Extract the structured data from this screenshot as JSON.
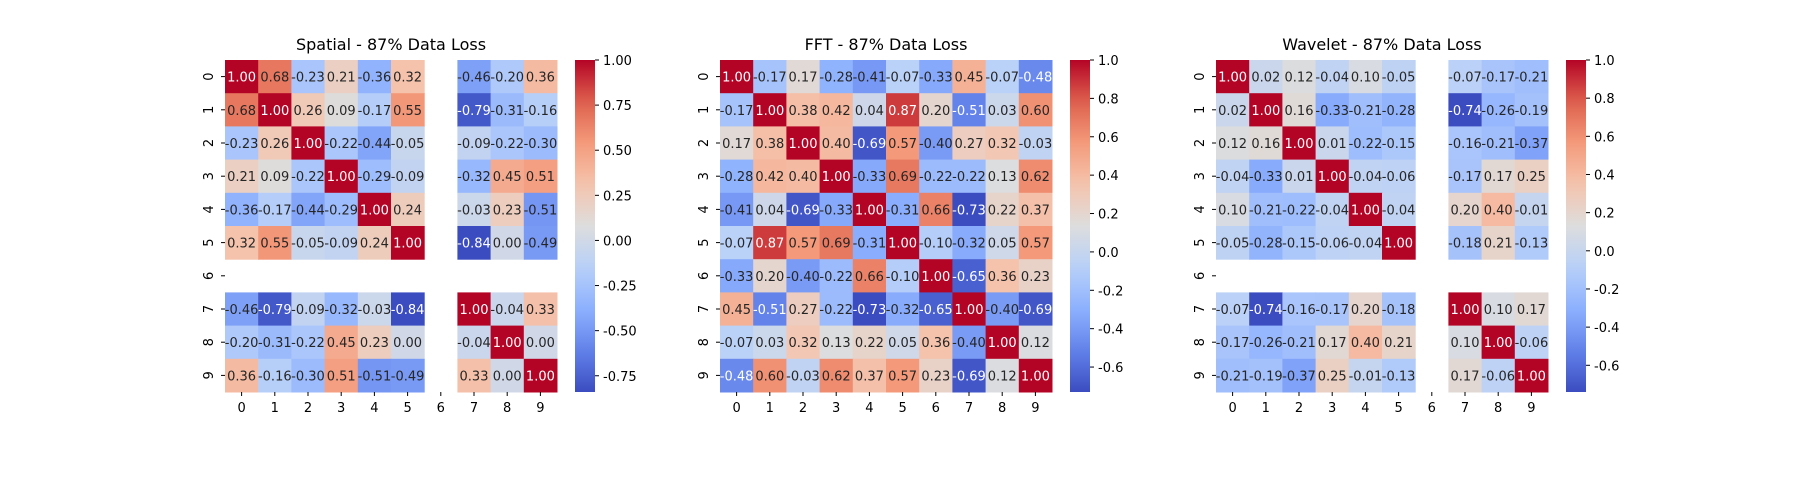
{
  "chart_data": [
    {
      "type": "heatmap",
      "title": "Spatial - 87% Data Loss",
      "x_labels": [
        "0",
        "1",
        "2",
        "3",
        "4",
        "5",
        "6",
        "7",
        "8",
        "9"
      ],
      "y_labels": [
        "0",
        "1",
        "2",
        "3",
        "4",
        "5",
        "6",
        "7",
        "8",
        "9"
      ],
      "values": [
        [
          1.0,
          0.68,
          -0.23,
          0.21,
          -0.36,
          0.32,
          null,
          -0.46,
          -0.2,
          0.36
        ],
        [
          0.68,
          1.0,
          0.26,
          0.09,
          -0.17,
          0.55,
          null,
          -0.79,
          -0.31,
          -0.16
        ],
        [
          -0.23,
          0.26,
          1.0,
          -0.22,
          -0.44,
          -0.05,
          null,
          -0.09,
          -0.22,
          -0.3
        ],
        [
          0.21,
          0.09,
          -0.22,
          1.0,
          -0.29,
          -0.09,
          null,
          -0.32,
          0.45,
          0.51
        ],
        [
          -0.36,
          -0.17,
          -0.44,
          -0.29,
          1.0,
          0.24,
          null,
          -0.03,
          0.23,
          -0.51
        ],
        [
          0.32,
          0.55,
          -0.05,
          -0.09,
          0.24,
          1.0,
          null,
          -0.84,
          0.0,
          -0.49
        ],
        [
          null,
          null,
          null,
          null,
          null,
          null,
          null,
          null,
          null,
          null
        ],
        [
          -0.46,
          -0.79,
          -0.09,
          -0.32,
          -0.03,
          -0.84,
          null,
          1.0,
          -0.04,
          0.33
        ],
        [
          -0.2,
          -0.31,
          -0.22,
          0.45,
          0.23,
          0.0,
          null,
          -0.04,
          1.0,
          0.0
        ],
        [
          0.36,
          -0.16,
          -0.3,
          0.51,
          -0.51,
          -0.49,
          null,
          0.33,
          0.0,
          1.0
        ]
      ],
      "value_format": "0.00",
      "colormap": "coolwarm",
      "vmin": -0.84,
      "vmax": 1.0,
      "colorbar_ticks": [
        "-0.75",
        "-0.50",
        "-0.25",
        "0.00",
        "0.25",
        "0.50",
        "0.75",
        "1.00"
      ]
    },
    {
      "type": "heatmap",
      "title": "FFT - 87% Data Loss",
      "x_labels": [
        "0",
        "1",
        "2",
        "3",
        "4",
        "5",
        "6",
        "7",
        "8",
        "9"
      ],
      "y_labels": [
        "0",
        "1",
        "2",
        "3",
        "4",
        "5",
        "6",
        "7",
        "8",
        "9"
      ],
      "values": [
        [
          1.0,
          -0.17,
          0.17,
          -0.28,
          -0.41,
          -0.07,
          -0.33,
          0.45,
          -0.07,
          -0.48
        ],
        [
          -0.17,
          1.0,
          0.38,
          0.42,
          0.04,
          0.87,
          0.2,
          -0.51,
          0.03,
          0.6
        ],
        [
          0.17,
          0.38,
          1.0,
          0.4,
          -0.69,
          0.57,
          -0.4,
          0.27,
          0.32,
          -0.03
        ],
        [
          -0.28,
          0.42,
          0.4,
          1.0,
          -0.33,
          0.69,
          -0.22,
          -0.22,
          0.13,
          0.62
        ],
        [
          -0.41,
          0.04,
          -0.69,
          -0.33,
          1.0,
          -0.31,
          0.66,
          -0.73,
          0.22,
          0.37
        ],
        [
          -0.07,
          0.87,
          0.57,
          0.69,
          -0.31,
          1.0,
          -0.1,
          -0.32,
          0.05,
          0.57
        ],
        [
          -0.33,
          0.2,
          -0.4,
          -0.22,
          0.66,
          -0.1,
          1.0,
          -0.65,
          0.36,
          0.23
        ],
        [
          0.45,
          -0.51,
          0.27,
          -0.22,
          -0.73,
          -0.32,
          -0.65,
          1.0,
          -0.4,
          -0.69
        ],
        [
          -0.07,
          0.03,
          0.32,
          0.13,
          0.22,
          0.05,
          0.36,
          -0.4,
          1.0,
          0.12
        ],
        [
          -0.48,
          0.6,
          -0.03,
          0.62,
          0.37,
          0.57,
          0.23,
          -0.69,
          0.12,
          1.0
        ]
      ],
      "value_format": "0.00",
      "colormap": "coolwarm",
      "vmin": -0.73,
      "vmax": 1.0,
      "colorbar_ticks": [
        "-0.6",
        "-0.4",
        "-0.2",
        "0.0",
        "0.2",
        "0.4",
        "0.6",
        "0.8",
        "1.0"
      ]
    },
    {
      "type": "heatmap",
      "title": "Wavelet - 87% Data Loss",
      "x_labels": [
        "0",
        "1",
        "2",
        "3",
        "4",
        "5",
        "6",
        "7",
        "8",
        "9"
      ],
      "y_labels": [
        "0",
        "1",
        "2",
        "3",
        "4",
        "5",
        "6",
        "7",
        "8",
        "9"
      ],
      "values": [
        [
          1.0,
          0.02,
          0.12,
          -0.04,
          0.1,
          -0.05,
          null,
          -0.07,
          -0.17,
          -0.21
        ],
        [
          0.02,
          1.0,
          0.16,
          -0.33,
          -0.21,
          -0.28,
          null,
          -0.74,
          -0.26,
          -0.19
        ],
        [
          0.12,
          0.16,
          1.0,
          0.01,
          -0.22,
          -0.15,
          null,
          -0.16,
          -0.21,
          -0.37
        ],
        [
          -0.04,
          -0.33,
          0.01,
          1.0,
          -0.04,
          -0.06,
          null,
          -0.17,
          0.17,
          0.25
        ],
        [
          0.1,
          -0.21,
          -0.22,
          -0.04,
          1.0,
          -0.04,
          null,
          0.2,
          0.4,
          -0.01
        ],
        [
          -0.05,
          -0.28,
          -0.15,
          -0.06,
          -0.04,
          1.0,
          null,
          -0.18,
          0.21,
          -0.13
        ],
        [
          null,
          null,
          null,
          null,
          null,
          null,
          null,
          null,
          null,
          null
        ],
        [
          -0.07,
          -0.74,
          -0.16,
          -0.17,
          0.2,
          -0.18,
          null,
          1.0,
          0.1,
          0.17
        ],
        [
          -0.17,
          -0.26,
          -0.21,
          0.17,
          0.4,
          0.21,
          null,
          0.1,
          1.0,
          -0.06
        ],
        [
          -0.21,
          -0.19,
          -0.37,
          0.25,
          -0.01,
          -0.13,
          null,
          0.17,
          -0.06,
          1.0
        ]
      ],
      "value_format": "0.00",
      "colormap": "coolwarm",
      "vmin": -0.74,
      "vmax": 1.0,
      "colorbar_ticks": [
        "-0.6",
        "-0.4",
        "-0.2",
        "0.0",
        "0.2",
        "0.4",
        "0.6",
        "0.8",
        "1.0"
      ]
    }
  ]
}
